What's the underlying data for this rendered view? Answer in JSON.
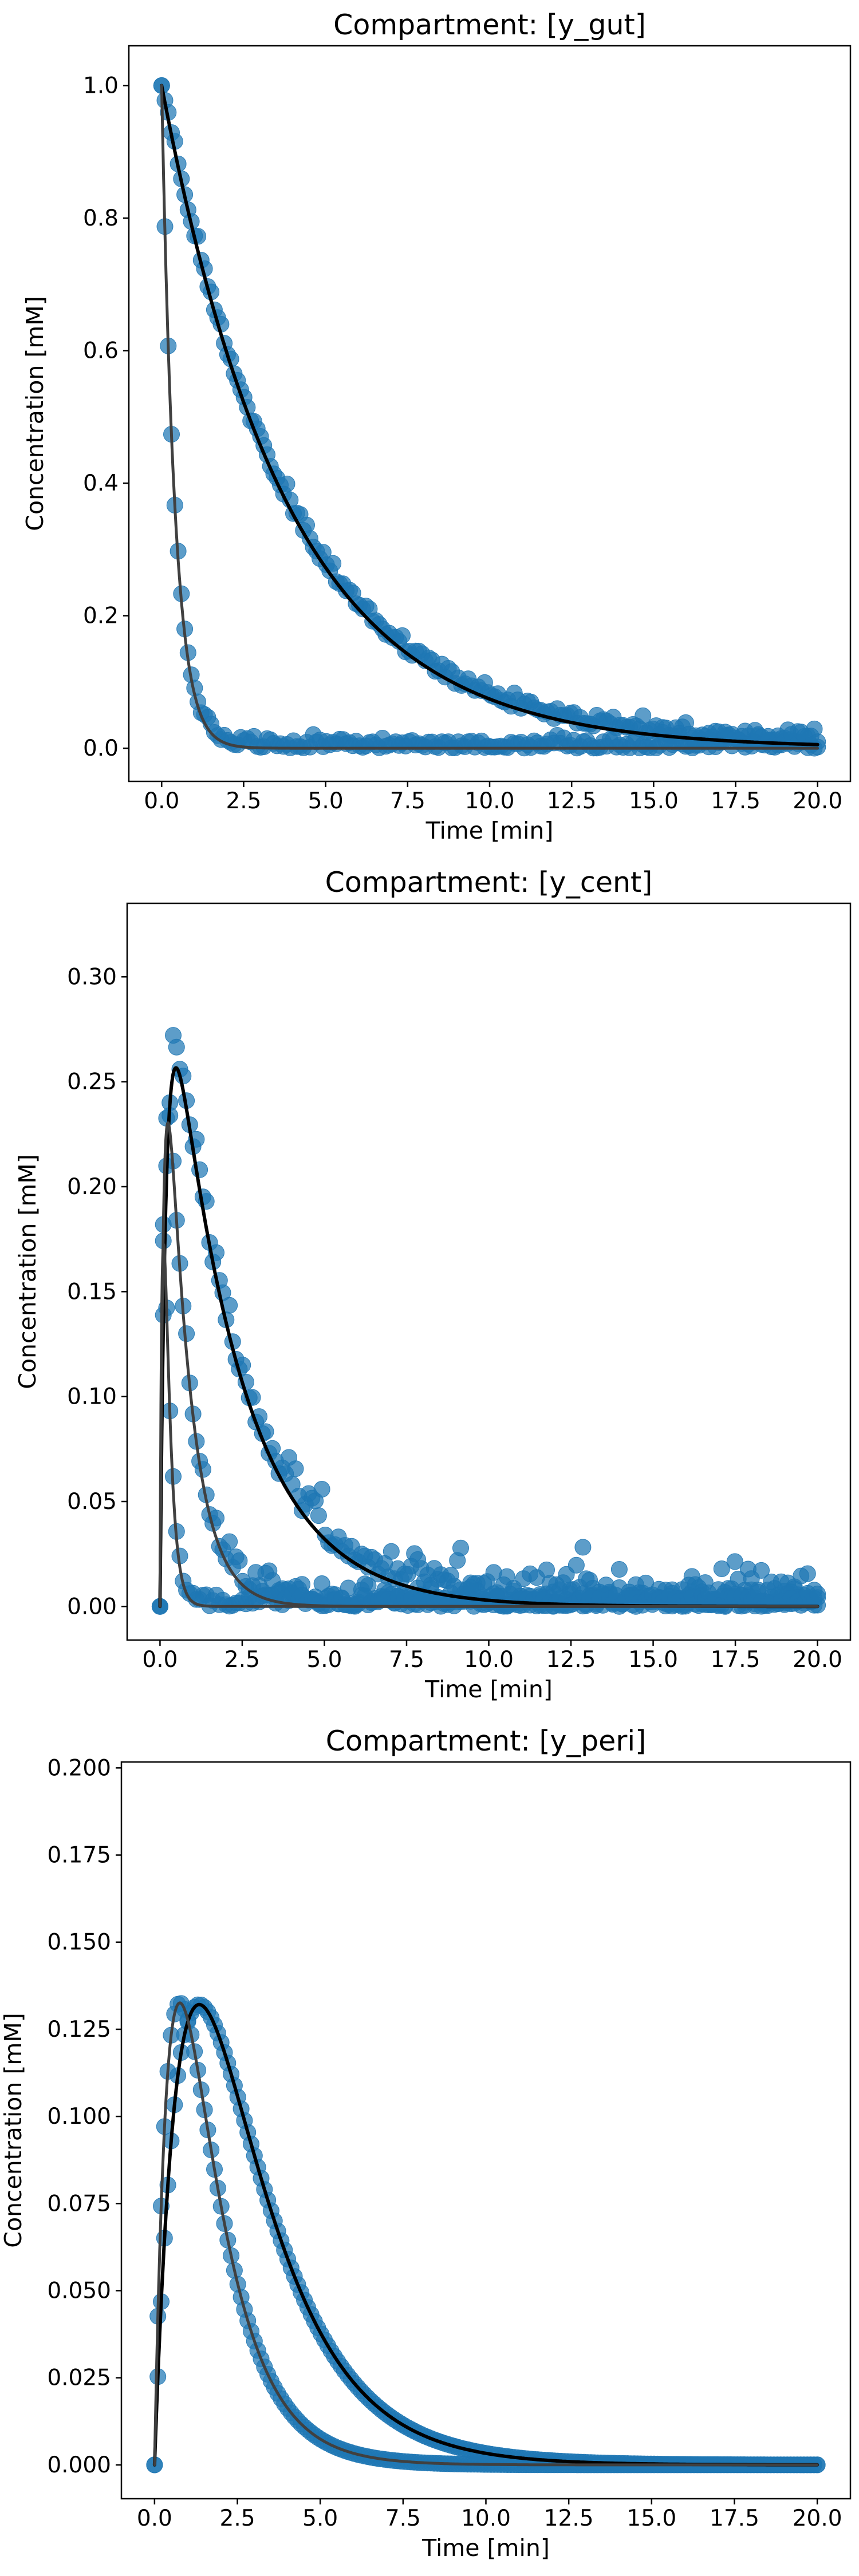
{
  "chart_data": [
    {
      "type": "scatter",
      "title": "Compartment: [y_gut]",
      "xlabel": "Time [min]",
      "ylabel": "Concentration [mM]",
      "xlim": [
        -1.0,
        21.0
      ],
      "ylim": [
        -0.05,
        1.06
      ],
      "xticks": [
        "0.0",
        "2.5",
        "5.0",
        "7.5",
        "10.0",
        "12.5",
        "15.0",
        "17.5",
        "20.0"
      ],
      "yticks": [
        "0.0",
        "0.2",
        "0.4",
        "0.6",
        "0.8",
        "1.0"
      ],
      "grid": false,
      "marker_color": "#1f77b4",
      "line_colors": [
        "#000000",
        "#404040"
      ],
      "series": [
        {
          "model": "exponential_decay",
          "amplitude": 1.0,
          "rate": 0.26,
          "t_end": 20,
          "n_points": 200,
          "noise": 0.012,
          "line": "#000000"
        },
        {
          "model": "exponential_decay",
          "amplitude": 1.0,
          "rate": 2.5,
          "t_end": 20,
          "n_points": 200,
          "noise": 0.01,
          "line": "#404040"
        }
      ]
    },
    {
      "type": "scatter",
      "title": "Compartment: [y_cent]",
      "xlabel": "Time [min]",
      "ylabel": "Concentration [mM]",
      "xlim": [
        -1.0,
        21.0
      ],
      "ylim": [
        -0.016,
        0.335
      ],
      "xticks": [
        "0.0",
        "2.5",
        "5.0",
        "7.5",
        "10.0",
        "12.5",
        "15.0",
        "17.5",
        "20.0"
      ],
      "yticks": [
        "0.00",
        "0.05",
        "0.10",
        "0.15",
        "0.20",
        "0.25",
        "0.30"
      ],
      "grid": false,
      "marker_color": "#1f77b4",
      "line_colors": [
        "#000000",
        "#404040"
      ],
      "series": [
        {
          "model": "rise_decay",
          "k_up": 5.5,
          "k_down": 0.48,
          "scale": 0.355,
          "t_end": 20,
          "n_points": 200,
          "noise": 0.009,
          "line": "#000000"
        },
        {
          "model": "rise_decay",
          "k_up": 9.0,
          "k_down": 1.45,
          "scale": 0.39,
          "t_end": 20,
          "n_points": 200,
          "noise": 0.006,
          "line": "#404040"
        },
        {
          "model": "rise_decay",
          "k_up": 14.0,
          "k_down": 5.5,
          "scale": 0.52,
          "t_end": 20,
          "n_points": 200,
          "noise": 0.004,
          "line": "#404040"
        }
      ]
    },
    {
      "type": "scatter",
      "title": "Compartment: [y_peri]",
      "xlabel": "Time [min]",
      "ylabel": "Concentration [mM]",
      "xlim": [
        -1.0,
        21.0
      ],
      "ylim": [
        -0.0097,
        0.2017
      ],
      "xticks": [
        "0.0",
        "2.5",
        "5.0",
        "7.5",
        "10.0",
        "12.5",
        "15.0",
        "17.5",
        "20.0"
      ],
      "yticks": [
        "0.000",
        "0.025",
        "0.050",
        "0.075",
        "0.100",
        "0.125",
        "0.150",
        "0.175",
        "0.200"
      ],
      "grid": false,
      "marker_color": "#1f77b4",
      "line_colors": [
        "#000000",
        "#404040"
      ],
      "series": [
        {
          "model": "rise_decay",
          "k_up": 1.05,
          "k_down": 0.5,
          "scale": 0.495,
          "t_end": 20,
          "n_points": 200,
          "noise": 0.0,
          "line": "#000000"
        },
        {
          "model": "rise_decay",
          "k_up": 2.0,
          "k_down": 0.8,
          "scale": 0.407,
          "t_end": 20,
          "n_points": 200,
          "noise": 0.0,
          "line": "#404040"
        }
      ]
    }
  ]
}
